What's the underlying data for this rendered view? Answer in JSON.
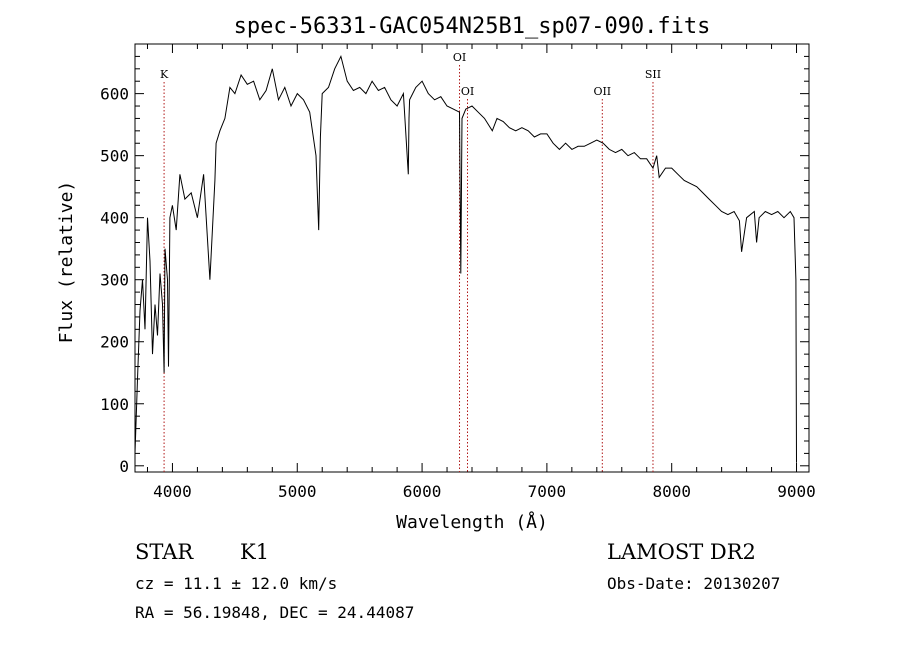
{
  "chart_data": {
    "type": "line",
    "title": "spec-56331-GAC054N25B1_sp07-090.fits",
    "xlabel": "Wavelength (Å)",
    "ylabel": "Flux (relative)",
    "xlim": [
      3700,
      9100
    ],
    "ylim": [
      -10,
      680
    ],
    "x_ticks": [
      4000,
      5000,
      6000,
      7000,
      8000,
      9000
    ],
    "y_ticks": [
      0,
      100,
      200,
      300,
      400,
      500,
      600
    ],
    "grid": false,
    "series": [
      {
        "color": "#000000",
        "x": [
          3700,
          3720,
          3740,
          3760,
          3780,
          3800,
          3820,
          3840,
          3860,
          3880,
          3900,
          3920,
          3933,
          3940,
          3960,
          3968,
          3980,
          4000,
          4030,
          4060,
          4100,
          4150,
          4200,
          4250,
          4300,
          4340,
          4350,
          4380,
          4420,
          4460,
          4500,
          4550,
          4600,
          4650,
          4700,
          4750,
          4800,
          4850,
          4900,
          4950,
          5000,
          5050,
          5100,
          5150,
          5172,
          5185,
          5200,
          5250,
          5300,
          5350,
          5400,
          5450,
          5500,
          5550,
          5600,
          5650,
          5700,
          5750,
          5800,
          5850,
          5890,
          5895,
          5900,
          5950,
          6000,
          6050,
          6100,
          6150,
          6200,
          6250,
          6300,
          6310,
          6320,
          6350,
          6400,
          6450,
          6500,
          6563,
          6600,
          6650,
          6700,
          6750,
          6800,
          6850,
          6900,
          6950,
          7000,
          7050,
          7100,
          7150,
          7200,
          7250,
          7300,
          7350,
          7400,
          7450,
          7500,
          7550,
          7600,
          7650,
          7700,
          7750,
          7800,
          7850,
          7880,
          7900,
          7950,
          8000,
          8050,
          8100,
          8150,
          8200,
          8250,
          8300,
          8350,
          8400,
          8450,
          8500,
          8542,
          8560,
          8600,
          8662,
          8680,
          8700,
          8750,
          8800,
          8850,
          8900,
          8950,
          8980,
          8995,
          9000
        ],
        "y": [
          20,
          140,
          250,
          300,
          220,
          400,
          330,
          180,
          260,
          210,
          310,
          260,
          150,
          350,
          300,
          160,
          400,
          420,
          380,
          470,
          430,
          440,
          400,
          470,
          300,
          460,
          520,
          540,
          560,
          610,
          600,
          630,
          615,
          620,
          590,
          605,
          640,
          590,
          610,
          580,
          600,
          590,
          570,
          500,
          380,
          530,
          600,
          610,
          640,
          660,
          620,
          605,
          610,
          600,
          620,
          605,
          610,
          590,
          580,
          600,
          470,
          560,
          590,
          610,
          620,
          600,
          590,
          595,
          580,
          575,
          570,
          310,
          560,
          575,
          580,
          570,
          560,
          540,
          560,
          555,
          545,
          540,
          545,
          540,
          530,
          535,
          535,
          520,
          510,
          520,
          510,
          515,
          515,
          520,
          525,
          520,
          510,
          505,
          510,
          500,
          505,
          495,
          495,
          480,
          500,
          465,
          480,
          480,
          470,
          460,
          455,
          450,
          440,
          430,
          420,
          410,
          405,
          410,
          395,
          345,
          400,
          410,
          360,
          400,
          410,
          405,
          410,
          400,
          410,
          400,
          300,
          5
        ]
      }
    ],
    "line_markers": [
      {
        "label": "K",
        "x": 3933,
        "label_row": 1
      },
      {
        "label": "OI",
        "x": 6300,
        "label_row": 0
      },
      {
        "label": "OI",
        "x": 6364,
        "label_row": 2
      },
      {
        "label": "OII",
        "x": 7444,
        "label_row": 2
      },
      {
        "label": "SII",
        "x": 7850,
        "label_row": 1
      }
    ]
  },
  "info": {
    "object_class": "STAR",
    "subclass": "K1",
    "redshift": "cz =  11.1 ± 12.0 km/s",
    "coords": "RA =  56.19848, DEC =  24.44087",
    "survey": "LAMOST DR2",
    "obs_date": "Obs-Date: 20130207"
  }
}
